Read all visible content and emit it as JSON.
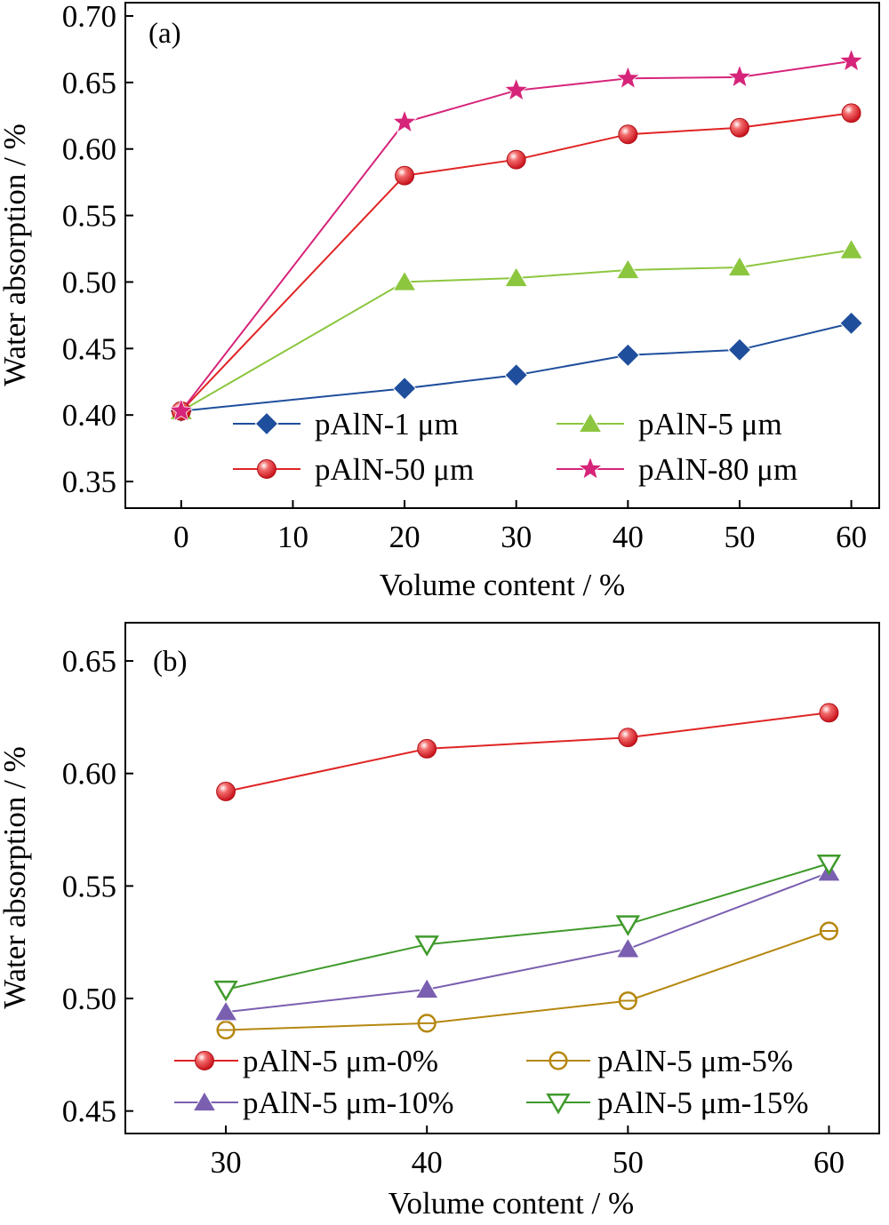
{
  "colors": {
    "blue": "#1f4e9c",
    "green": "#8cc63f",
    "red": "#e02424",
    "magenta": "#d6247a",
    "olive": "#b5870f",
    "purple": "#7a5fb0",
    "dkgreen": "#3f9a2b"
  },
  "chart_data": [
    {
      "type": "line",
      "panel_label": "(a)",
      "xlabel": "Volume content / %",
      "ylabel": "Water absorption / %",
      "xlim": [
        -5,
        62.5
      ],
      "ylim": [
        0.33,
        0.71
      ],
      "xticks": [
        "0",
        "10",
        "20",
        "30",
        "40",
        "50",
        "60"
      ],
      "yticks": [
        "0.35",
        "0.40",
        "0.45",
        "0.50",
        "0.55",
        "0.60",
        "0.65",
        "0.70"
      ],
      "grid": false,
      "legend_position": "bottom-right",
      "x": [
        0,
        20,
        30,
        40,
        50,
        60
      ],
      "series": [
        {
          "name": "pAlN-1 μm",
          "marker": "diamond",
          "color": "#1f4e9c",
          "values": [
            0.403,
            0.42,
            0.43,
            0.445,
            0.449,
            0.469
          ]
        },
        {
          "name": "pAlN-5 μm",
          "marker": "triangle-up",
          "color": "#8cc63f",
          "values": [
            0.403,
            0.5,
            0.503,
            0.509,
            0.511,
            0.524
          ]
        },
        {
          "name": "pAlN-50 μm",
          "marker": "sphere",
          "color": "#e02424",
          "values": [
            0.403,
            0.58,
            0.592,
            0.611,
            0.616,
            0.627
          ]
        },
        {
          "name": "pAlN-80 μm",
          "marker": "star",
          "color": "#d6247a",
          "values": [
            0.403,
            0.62,
            0.644,
            0.653,
            0.654,
            0.666
          ]
        }
      ]
    },
    {
      "type": "line",
      "panel_label": "(b)",
      "xlabel": "Volume content / %",
      "ylabel": "Water absorption / %",
      "xlim": [
        25,
        62.5
      ],
      "ylim": [
        0.44,
        0.667
      ],
      "xticks": [
        "30",
        "40",
        "50",
        "60"
      ],
      "yticks": [
        "0.45",
        "0.50",
        "0.55",
        "0.60",
        "0.65"
      ],
      "grid": false,
      "legend_position": "bottom",
      "x": [
        30,
        40,
        50,
        60
      ],
      "series": [
        {
          "name": "pAlN-5 μm-0%",
          "marker": "sphere",
          "color": "#e02424",
          "values": [
            0.592,
            0.611,
            0.616,
            0.627
          ]
        },
        {
          "name": "pAlN-5 μm-5%",
          "marker": "open-circle",
          "color": "#b5870f",
          "values": [
            0.486,
            0.489,
            0.499,
            0.53
          ]
        },
        {
          "name": "pAlN-5 μm-10%",
          "marker": "triangle-up",
          "color": "#7a5fb0",
          "values": [
            0.494,
            0.504,
            0.522,
            0.556
          ]
        },
        {
          "name": "pAlN-5 μm-15%",
          "marker": "open-triangle-down",
          "color": "#3f9a2b",
          "values": [
            0.504,
            0.524,
            0.533,
            0.56
          ]
        }
      ]
    }
  ]
}
